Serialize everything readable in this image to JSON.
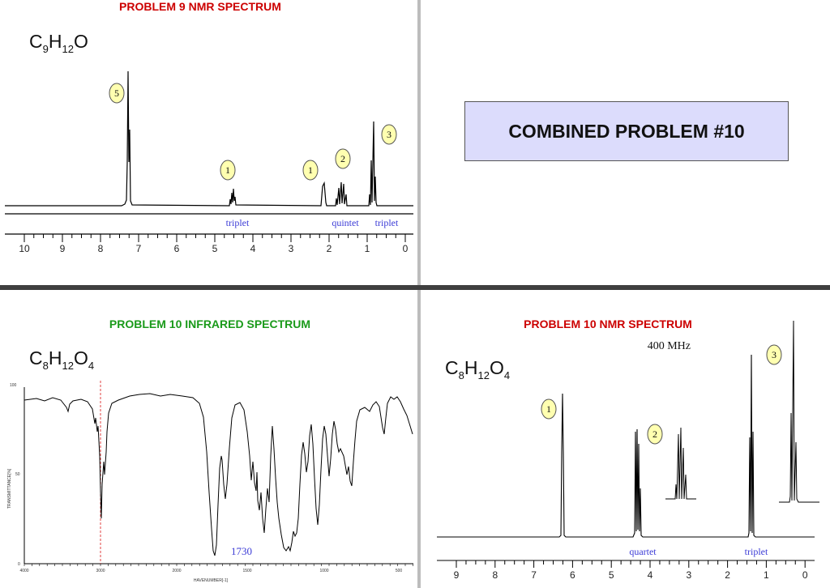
{
  "problem9_nmr": {
    "title": "PROBLEM  9   NMR SPECTRUM",
    "formula": {
      "c": "C",
      "c_n": "9",
      "h": "H",
      "h_n": "12",
      "o": "O",
      "o_n": ""
    },
    "x_ticks": [
      "10",
      "9",
      "8",
      "7",
      "6",
      "5",
      "4",
      "3",
      "2",
      "1",
      "0"
    ],
    "integrations": [
      "5",
      "1",
      "1",
      "2",
      "3"
    ],
    "multiplicity": [
      "triplet",
      "quintet",
      "triplet"
    ],
    "colors": {
      "title": "#cc0000",
      "badge_fill": "#ffffb0",
      "annotation": "#3b3bd6"
    }
  },
  "combined": {
    "label": "COMBINED PROBLEM #10",
    "fill": "#dcdcfc"
  },
  "problem10_ir": {
    "title": "PROBLEM  10   INFRARED SPECTRUM",
    "formula": {
      "c": "C",
      "c_n": "8",
      "h": "H",
      "h_n": "12",
      "o": "O",
      "o_n": "4"
    },
    "peak_label": "1730",
    "y_ticks": [
      "100",
      "50",
      "0"
    ],
    "x_ticks": [
      "4000",
      "3000",
      "2000",
      "1500",
      "1000",
      "500"
    ],
    "y_axis_label": "TRANSMITTANCE[%]",
    "x_axis_label": "HAVENUMBER[-1]",
    "colors": {
      "title": "#1a9a1a",
      "marker": "#e04040"
    }
  },
  "problem10_nmr": {
    "title": "PROBLEM  10   NMR SPECTRUM",
    "frequency": "400 MHz",
    "formula": {
      "c": "C",
      "c_n": "8",
      "h": "H",
      "h_n": "12",
      "o": "O",
      "o_n": "4"
    },
    "x_ticks": [
      "9",
      "8",
      "7",
      "6",
      "5",
      "4",
      "3",
      "2",
      "1",
      "0"
    ],
    "integrations": [
      "1",
      "2",
      "3"
    ],
    "multiplicity": [
      "quartet",
      "triplet"
    ],
    "colors": {
      "title": "#cc0000"
    }
  },
  "chart_data": [
    {
      "type": "line",
      "title": "PROBLEM  9   NMR SPECTRUM",
      "xlabel": "",
      "ylabel": "",
      "xlim": [
        10,
        0
      ],
      "peaks_ppm": [
        7.25,
        4.55,
        2.2,
        1.7,
        0.9
      ],
      "integrations": [
        5,
        1,
        1,
        2,
        3
      ],
      "annotations": [
        "triplet",
        "quintet",
        "triplet"
      ]
    },
    {
      "type": "line",
      "title": "PROBLEM  10   INFRARED SPECTRUM",
      "xlabel": "HAVENUMBER[-1]",
      "ylabel": "TRANSMITTANCE[%]",
      "xlim": [
        4000,
        400
      ],
      "ylim": [
        0,
        100
      ],
      "peak_cm1": [
        2980,
        1730,
        1370,
        1300,
        1230,
        1160,
        1030
      ],
      "annotations": [
        "1730"
      ]
    },
    {
      "type": "line",
      "title": "PROBLEM  10   NMR SPECTRUM",
      "xlabel": "",
      "ylabel": "",
      "xlim": [
        9,
        0
      ],
      "peaks_ppm": [
        6.3,
        4.2,
        1.3
      ],
      "integrations": [
        1,
        2,
        3
      ],
      "annotations": [
        "quartet",
        "triplet"
      ]
    }
  ]
}
